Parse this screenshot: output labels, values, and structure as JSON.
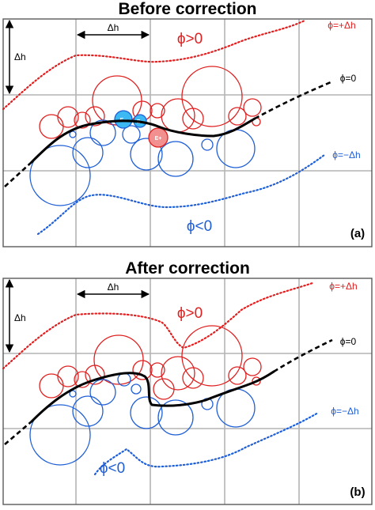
{
  "panels": [
    {
      "title": "Before correction",
      "tag": "(a)",
      "dh": "Δh",
      "phi_pos_region": "ϕ>0",
      "phi_neg_region": "ϕ<0",
      "phi_pos_line": "ϕ=+Δh",
      "phi_zero_line": "ϕ=0",
      "phi_neg_line": "ϕ=−Δh",
      "particle_labels": [
        "E−",
        "E−",
        "E+"
      ]
    },
    {
      "title": "After correction",
      "tag": "(b)",
      "dh": "Δh",
      "phi_pos_region": "ϕ>0",
      "phi_neg_region": "ϕ<0",
      "phi_pos_line": "ϕ=+Δh",
      "phi_zero_line": "ϕ=0",
      "phi_neg_line": "ϕ=−Δh"
    }
  ],
  "colors": {
    "positive": "#e02020",
    "negative": "#1f5fd6",
    "interface": "#000000",
    "grid": "#b4b4b4"
  }
}
